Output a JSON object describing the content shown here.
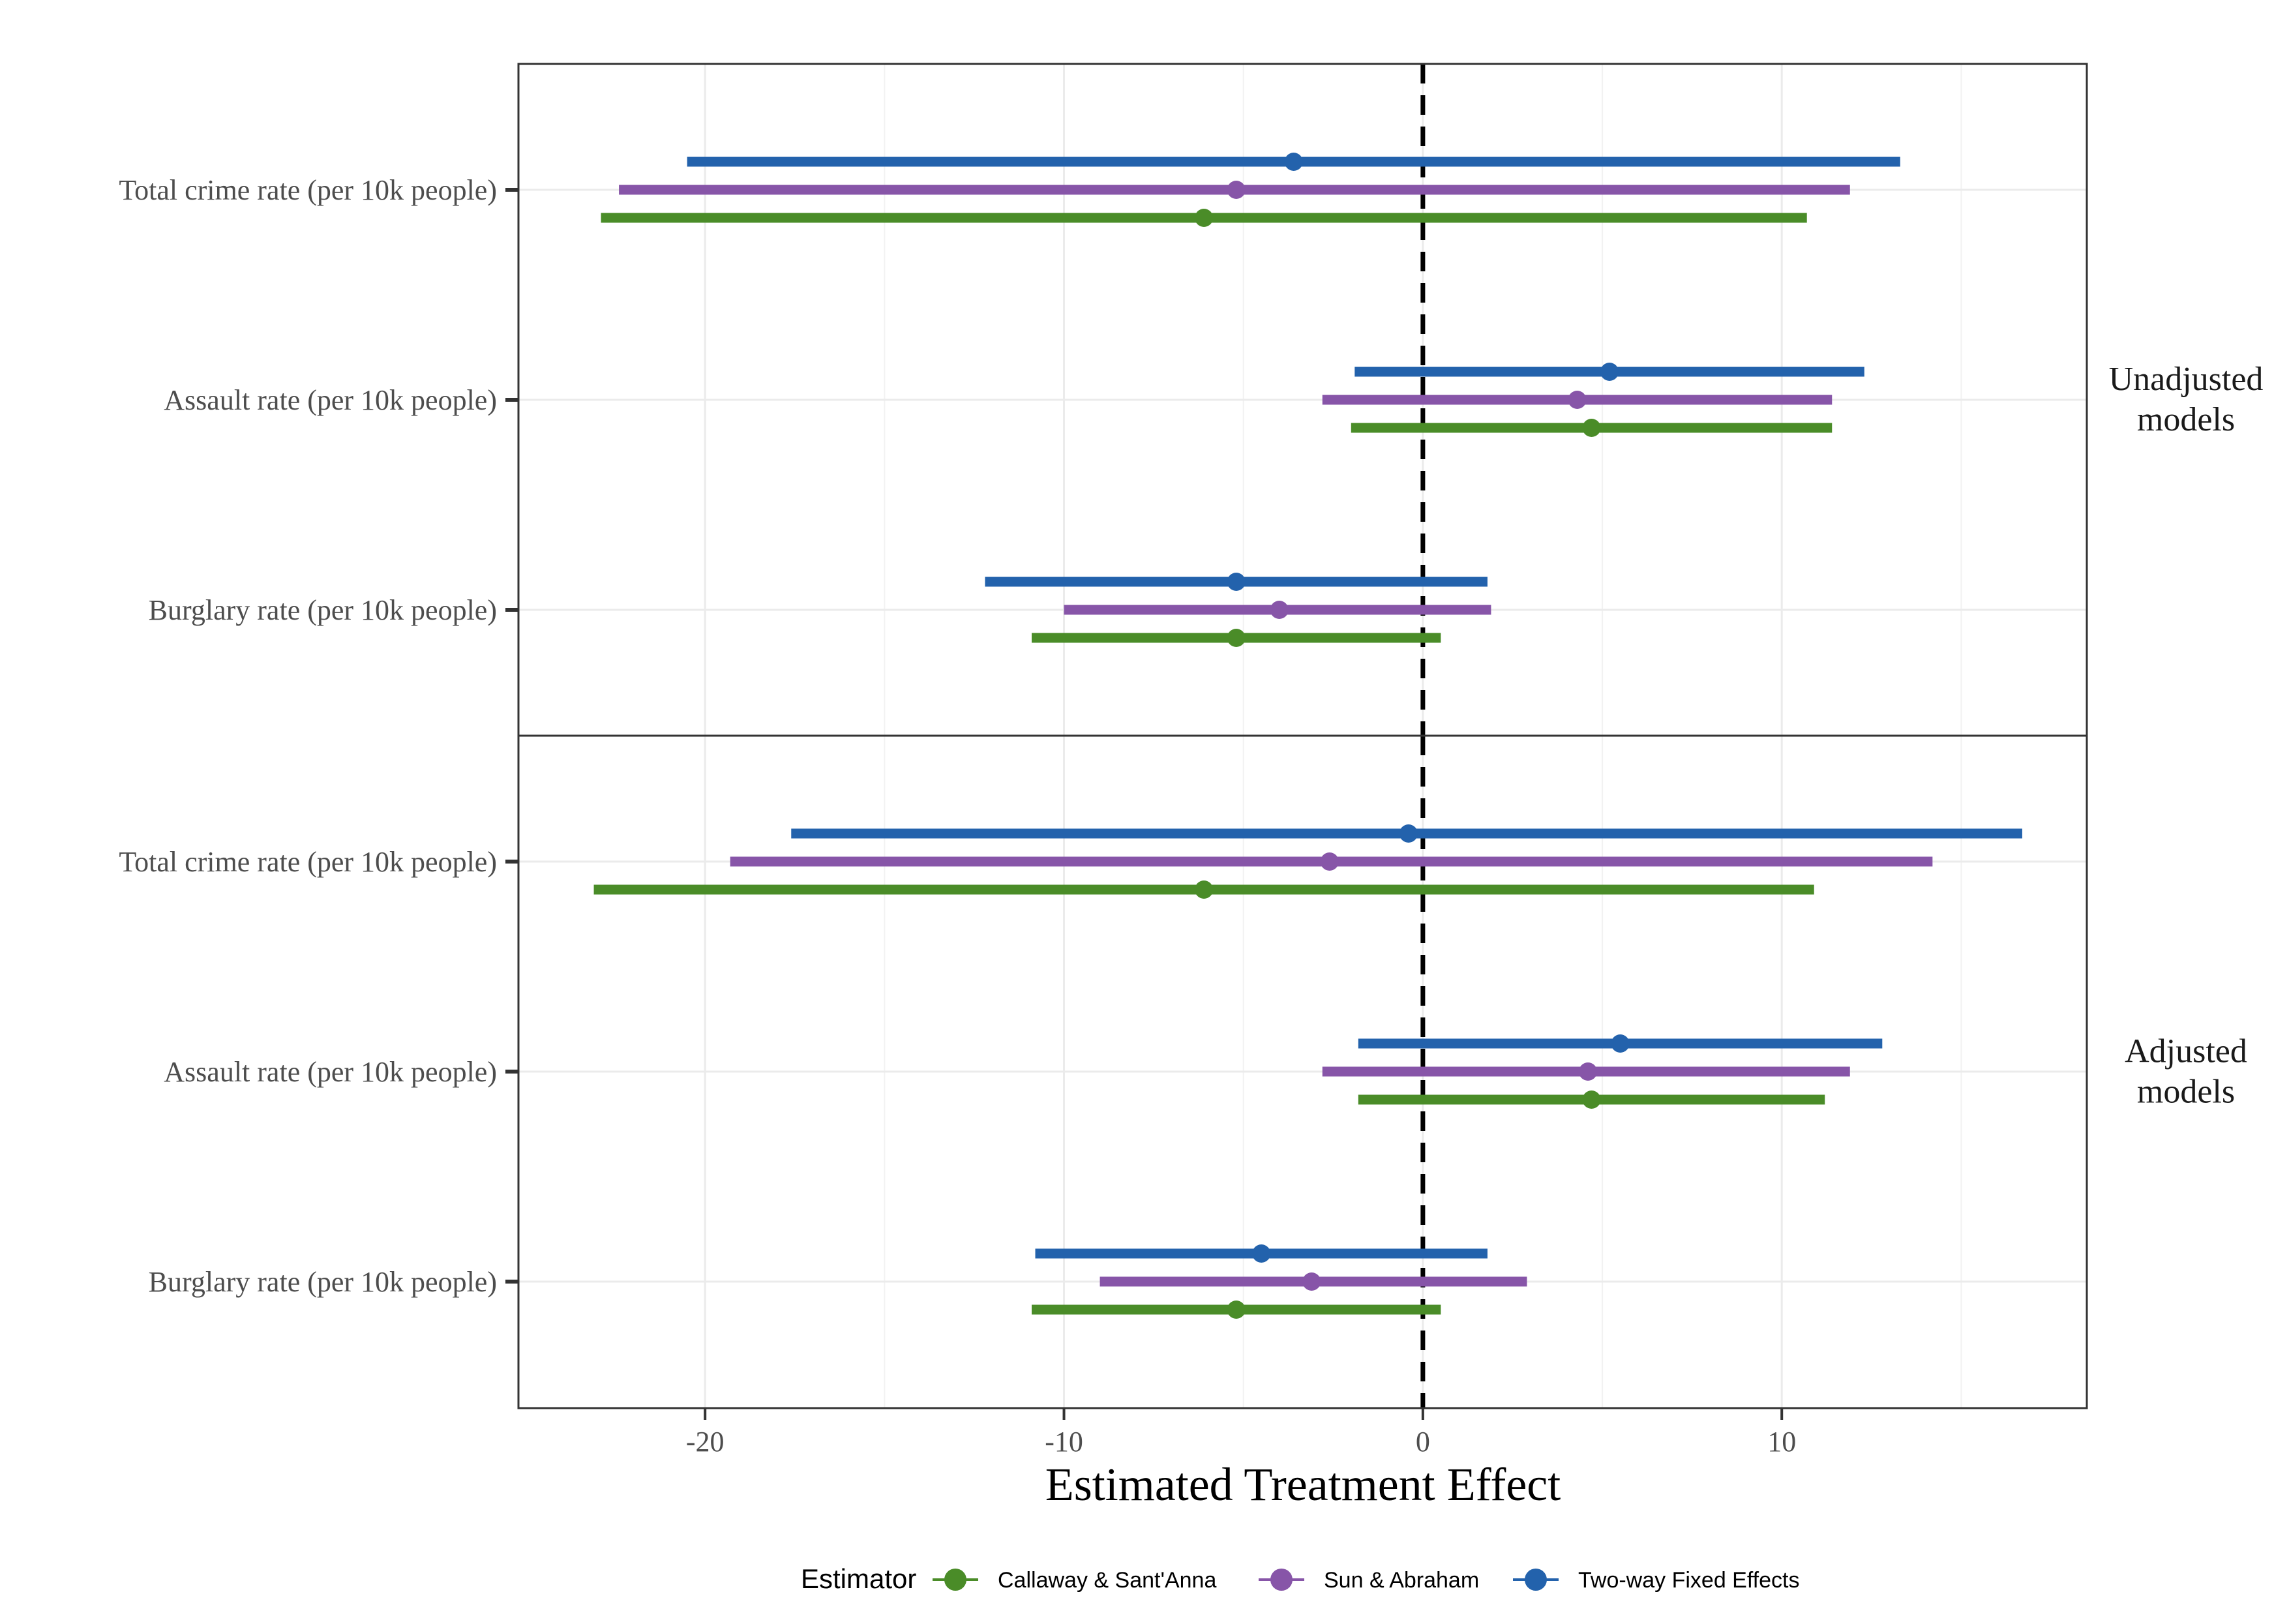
{
  "chart_data": {
    "type": "forest",
    "xlabel": "Estimated Treatment Effect",
    "xlim": [
      -25.2,
      18.5
    ],
    "x_ticks": [
      -20,
      -10,
      0,
      10
    ],
    "x_tick_labels": [
      "-20",
      "-10",
      "0",
      "10"
    ],
    "x_minor_ticks": [
      -15,
      -5,
      5,
      15
    ],
    "reference_line": 0,
    "grid": true,
    "legend": {
      "title": "Estimator",
      "position": "bottom",
      "entries": [
        {
          "name": "Callaway & Sant'Anna",
          "color": "#4a8c28"
        },
        {
          "name": "Sun & Abraham",
          "color": "#8755a8"
        },
        {
          "name": "Two-way Fixed Effects",
          "color": "#2362ac"
        }
      ]
    },
    "outcomes": [
      "Total crime rate (per 10k people)",
      "Assault rate (per 10k people)",
      "Burglary rate (per 10k people)"
    ],
    "panels": [
      {
        "label_lines": [
          "Unadjusted",
          "models"
        ],
        "outcomes": [
          {
            "estimates": [
              {
                "estimator": "Two-way Fixed Effects",
                "estimate": -3.6,
                "low": -20.5,
                "high": 13.3
              },
              {
                "estimator": "Sun & Abraham",
                "estimate": -5.2,
                "low": -22.4,
                "high": 11.9
              },
              {
                "estimator": "Callaway & Sant'Anna",
                "estimate": -6.1,
                "low": -22.9,
                "high": 10.7
              }
            ]
          },
          {
            "estimates": [
              {
                "estimator": "Two-way Fixed Effects",
                "estimate": 5.2,
                "low": -1.9,
                "high": 12.3
              },
              {
                "estimator": "Sun & Abraham",
                "estimate": 4.3,
                "low": -2.8,
                "high": 11.4
              },
              {
                "estimator": "Callaway & Sant'Anna",
                "estimate": 4.7,
                "low": -2.0,
                "high": 11.4
              }
            ]
          },
          {
            "estimates": [
              {
                "estimator": "Two-way Fixed Effects",
                "estimate": -5.2,
                "low": -12.2,
                "high": 1.8
              },
              {
                "estimator": "Sun & Abraham",
                "estimate": -4.0,
                "low": -10.0,
                "high": 1.9
              },
              {
                "estimator": "Callaway & Sant'Anna",
                "estimate": -5.2,
                "low": -10.9,
                "high": 0.5
              }
            ]
          }
        ]
      },
      {
        "label_lines": [
          "Adjusted",
          "models"
        ],
        "outcomes": [
          {
            "estimates": [
              {
                "estimator": "Two-way Fixed Effects",
                "estimate": -0.4,
                "low": -17.6,
                "high": 16.7
              },
              {
                "estimator": "Sun & Abraham",
                "estimate": -2.6,
                "low": -19.3,
                "high": 14.2
              },
              {
                "estimator": "Callaway & Sant'Anna",
                "estimate": -6.1,
                "low": -23.1,
                "high": 10.9
              }
            ]
          },
          {
            "estimates": [
              {
                "estimator": "Two-way Fixed Effects",
                "estimate": 5.5,
                "low": -1.8,
                "high": 12.8
              },
              {
                "estimator": "Sun & Abraham",
                "estimate": 4.6,
                "low": -2.8,
                "high": 11.9
              },
              {
                "estimator": "Callaway & Sant'Anna",
                "estimate": 4.7,
                "low": -1.8,
                "high": 11.2
              }
            ]
          },
          {
            "estimates": [
              {
                "estimator": "Two-way Fixed Effects",
                "estimate": -4.5,
                "low": -10.8,
                "high": 1.8
              },
              {
                "estimator": "Sun & Abraham",
                "estimate": -3.1,
                "low": -9.0,
                "high": 2.9
              },
              {
                "estimator": "Callaway & Sant'Anna",
                "estimate": -5.2,
                "low": -10.9,
                "high": 0.5
              }
            ]
          }
        ]
      }
    ]
  }
}
